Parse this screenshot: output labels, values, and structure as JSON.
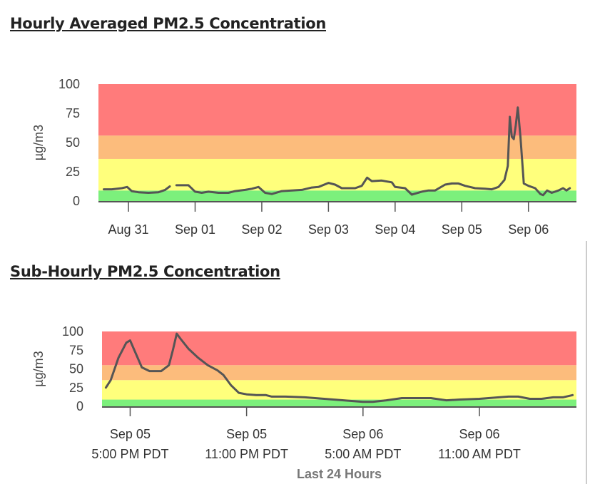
{
  "titles": {
    "hourly": "Hourly Averaged PM2.5 Concentration",
    "subhourly": "Sub-Hourly PM2.5 Concentration"
  },
  "colors": {
    "red": "#ff7b7b",
    "orange": "#fcbc7c",
    "yellow": "#ffff7c",
    "green": "#7cf07c",
    "line": "#555555"
  },
  "chart_data": [
    {
      "type": "line",
      "title": "Hourly Averaged PM2.5 Concentration",
      "ylabel": "µg/m3",
      "xlabel": "",
      "ylim": [
        0,
        100
      ],
      "yticks": [
        "0",
        "25",
        "50",
        "75",
        "100"
      ],
      "x_units": "days since Aug 31 00:00",
      "xlim": [
        -0.45,
        6.72
      ],
      "xticks": [
        {
          "x": 0,
          "label": "Aug 31"
        },
        {
          "x": 1,
          "label": "Sep 01"
        },
        {
          "x": 2,
          "label": "Sep 02"
        },
        {
          "x": 3,
          "label": "Sep 03"
        },
        {
          "x": 4,
          "label": "Sep 04"
        },
        {
          "x": 5,
          "label": "Sep 05"
        },
        {
          "x": 6,
          "label": "Sep 06"
        }
      ],
      "bands": [
        {
          "from": 0,
          "to": 9,
          "color": "green"
        },
        {
          "from": 9,
          "to": 36,
          "color": "yellow"
        },
        {
          "from": 36,
          "to": 56,
          "color": "orange"
        },
        {
          "from": 56,
          "to": 100,
          "color": "red"
        }
      ],
      "segments": [
        [
          [
            -0.37,
            10
          ],
          [
            -0.25,
            10
          ],
          [
            -0.1,
            11
          ],
          [
            -0.02,
            12
          ],
          [
            0.05,
            8.5
          ],
          [
            0.15,
            7.5
          ],
          [
            0.3,
            7
          ],
          [
            0.45,
            7.5
          ],
          [
            0.55,
            9.5
          ],
          [
            0.62,
            12.5
          ]
        ],
        [
          [
            0.72,
            13.5
          ],
          [
            0.9,
            13.5
          ],
          [
            1.0,
            8
          ],
          [
            1.1,
            7
          ],
          [
            1.2,
            8
          ],
          [
            1.35,
            7
          ],
          [
            1.5,
            7
          ],
          [
            1.6,
            8.5
          ],
          [
            1.75,
            9.5
          ],
          [
            1.85,
            10.5
          ],
          [
            1.95,
            12
          ],
          [
            2.05,
            7
          ],
          [
            2.15,
            6
          ],
          [
            2.3,
            8.5
          ],
          [
            2.45,
            9
          ],
          [
            2.6,
            9.5
          ],
          [
            2.75,
            11.5
          ],
          [
            2.85,
            12
          ],
          [
            3.0,
            15.5
          ],
          [
            3.1,
            14
          ],
          [
            3.2,
            11
          ],
          [
            3.4,
            11
          ],
          [
            3.5,
            13
          ],
          [
            3.58,
            20
          ],
          [
            3.65,
            17
          ],
          [
            3.8,
            17.5
          ],
          [
            3.95,
            16
          ],
          [
            4.0,
            12
          ],
          [
            4.15,
            11
          ],
          [
            4.25,
            5.5
          ],
          [
            4.4,
            8
          ],
          [
            4.5,
            9
          ],
          [
            4.6,
            9
          ],
          [
            4.75,
            14
          ],
          [
            4.85,
            15
          ],
          [
            4.95,
            15
          ],
          [
            5.05,
            13
          ],
          [
            5.2,
            11
          ],
          [
            5.35,
            10.5
          ],
          [
            5.45,
            10
          ],
          [
            5.55,
            12
          ],
          [
            5.64,
            18
          ],
          [
            5.69,
            30
          ],
          [
            5.72,
            72
          ],
          [
            5.75,
            55
          ],
          [
            5.78,
            53
          ],
          [
            5.81,
            65
          ],
          [
            5.84,
            80
          ],
          [
            5.88,
            55
          ],
          [
            5.93,
            15
          ],
          [
            6.0,
            13
          ],
          [
            6.1,
            11
          ],
          [
            6.18,
            6
          ],
          [
            6.22,
            5
          ],
          [
            6.28,
            9
          ],
          [
            6.35,
            7
          ],
          [
            6.45,
            9
          ],
          [
            6.52,
            11
          ],
          [
            6.57,
            9
          ],
          [
            6.62,
            11
          ]
        ]
      ]
    },
    {
      "type": "line",
      "title": "Sub-Hourly PM2.5 Concentration",
      "ylabel": "µg/m3",
      "xlabel": "Last 24 Hours",
      "ylim": [
        0,
        100
      ],
      "yticks": [
        "0",
        "25",
        "50",
        "75",
        "100"
      ],
      "x_units": "hours since Sep 05 5:00 PM PDT",
      "xlim": [
        -1.45,
        23.0
      ],
      "xticks": [
        {
          "x": 0,
          "label": "Sep 05",
          "label2": "5:00 PM PDT"
        },
        {
          "x": 6,
          "label": "Sep 05",
          "label2": "11:00 PM PDT"
        },
        {
          "x": 12,
          "label": "Sep 06",
          "label2": "5:00 AM PDT"
        },
        {
          "x": 18,
          "label": "Sep 06",
          "label2": "11:00 AM PDT"
        }
      ],
      "bands": [
        {
          "from": 0,
          "to": 9,
          "color": "green"
        },
        {
          "from": 9,
          "to": 35,
          "color": "yellow"
        },
        {
          "from": 35,
          "to": 55,
          "color": "orange"
        },
        {
          "from": 55,
          "to": 100,
          "color": "red"
        }
      ],
      "segments": [
        [
          [
            -1.25,
            25
          ],
          [
            -1.0,
            35
          ],
          [
            -0.6,
            65
          ],
          [
            -0.2,
            85
          ],
          [
            0,
            88
          ],
          [
            0.3,
            70
          ],
          [
            0.6,
            52
          ],
          [
            1.0,
            47
          ],
          [
            1.6,
            47
          ],
          [
            2.0,
            55
          ],
          [
            2.2,
            75
          ],
          [
            2.4,
            97
          ],
          [
            2.6,
            90
          ],
          [
            3.0,
            77
          ],
          [
            3.5,
            65
          ],
          [
            4.0,
            55
          ],
          [
            4.5,
            48
          ],
          [
            4.8,
            42
          ],
          [
            5.2,
            28
          ],
          [
            5.6,
            18
          ],
          [
            6.0,
            16
          ],
          [
            6.5,
            15
          ],
          [
            7.0,
            15
          ],
          [
            7.3,
            13
          ],
          [
            8,
            13
          ],
          [
            9,
            12
          ],
          [
            10,
            10
          ],
          [
            11,
            8
          ],
          [
            12,
            6
          ],
          [
            12.5,
            6
          ],
          [
            13.2,
            8
          ],
          [
            14,
            11
          ],
          [
            15,
            11
          ],
          [
            15.5,
            11
          ],
          [
            16.3,
            8
          ],
          [
            17,
            9
          ],
          [
            18,
            10
          ],
          [
            19,
            12
          ],
          [
            19.5,
            13
          ],
          [
            20,
            13
          ],
          [
            20.6,
            10
          ],
          [
            21.2,
            10
          ],
          [
            21.8,
            12
          ],
          [
            22.3,
            12
          ],
          [
            22.8,
            15
          ]
        ]
      ]
    }
  ]
}
